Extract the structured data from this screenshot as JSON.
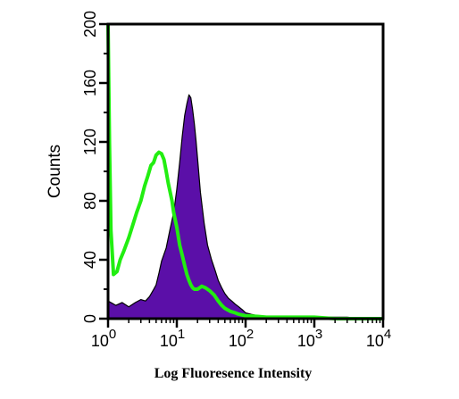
{
  "chart_data": {
    "type": "area",
    "title": "",
    "xlabel": "Log Fluoresence Intensity",
    "ylabel": "Counts",
    "x_scale": "log",
    "xlim": [
      1,
      10000
    ],
    "ylim": [
      0,
      200
    ],
    "grid": false,
    "x_ticks": [
      {
        "value": 1,
        "base": "10",
        "exp": "0"
      },
      {
        "value": 10,
        "base": "10",
        "exp": "1"
      },
      {
        "value": 100,
        "base": "10",
        "exp": "2"
      },
      {
        "value": 1000,
        "base": "10",
        "exp": "3"
      },
      {
        "value": 10000,
        "base": "10",
        "exp": "4"
      }
    ],
    "y_ticks": [
      {
        "value": 0,
        "label": "0"
      },
      {
        "value": 40,
        "label": "40"
      },
      {
        "value": 80,
        "label": "80"
      },
      {
        "value": 120,
        "label": "120"
      },
      {
        "value": 160,
        "label": "160"
      },
      {
        "value": 200,
        "label": "200"
      }
    ],
    "series": [
      {
        "style": "filled",
        "color": "#5b0fa8",
        "x": [
          1,
          1.3,
          1.6,
          2,
          2.5,
          3,
          3.5,
          4,
          4.5,
          5,
          5.5,
          6,
          7,
          8,
          9,
          10,
          11,
          12,
          13,
          14,
          15,
          16,
          17,
          18,
          19,
          20,
          22,
          25,
          28,
          32,
          36,
          40,
          45,
          50,
          56,
          63,
          70,
          80,
          90,
          100,
          120,
          150,
          200,
          300,
          500,
          1000,
          2000,
          3000,
          5000,
          10000
        ],
        "values": [
          12,
          9,
          11,
          8,
          11,
          13,
          12,
          15,
          19,
          23,
          31,
          39,
          48,
          61,
          72,
          88,
          106,
          124,
          138,
          146,
          152,
          150,
          142,
          132,
          121,
          109,
          86,
          65,
          50,
          40,
          33,
          26,
          21,
          17,
          14,
          12,
          10,
          8,
          6,
          4,
          3,
          2,
          1.5,
          1,
          1,
          1,
          1,
          1,
          0,
          0
        ]
      },
      {
        "style": "line",
        "color": "#22ee11",
        "x": [
          1,
          1.05,
          1.1,
          1.2,
          1.35,
          1.5,
          1.7,
          2,
          2.3,
          2.6,
          3,
          3.4,
          3.8,
          4.2,
          4.6,
          5,
          5.5,
          6,
          6.5,
          7,
          7.5,
          8,
          8.5,
          9,
          10,
          11,
          12,
          13,
          14,
          15,
          16,
          17,
          18,
          20,
          23,
          26,
          30,
          35,
          40,
          45,
          50,
          60,
          70,
          80,
          100,
          150,
          200,
          300,
          500,
          1000,
          2000,
          4000,
          10000
        ],
        "values": [
          200,
          118,
          60,
          30,
          32,
          40,
          46,
          55,
          64,
          72,
          80,
          90,
          97,
          104,
          106,
          111,
          113,
          112,
          108,
          100,
          92,
          86,
          80,
          72,
          62,
          50,
          43,
          36,
          30,
          26,
          23,
          21,
          20,
          20,
          22,
          21,
          19,
          16,
          12,
          9,
          7,
          5,
          4,
          3,
          2,
          1.5,
          1,
          1,
          1,
          1,
          0,
          0,
          0
        ]
      }
    ]
  }
}
